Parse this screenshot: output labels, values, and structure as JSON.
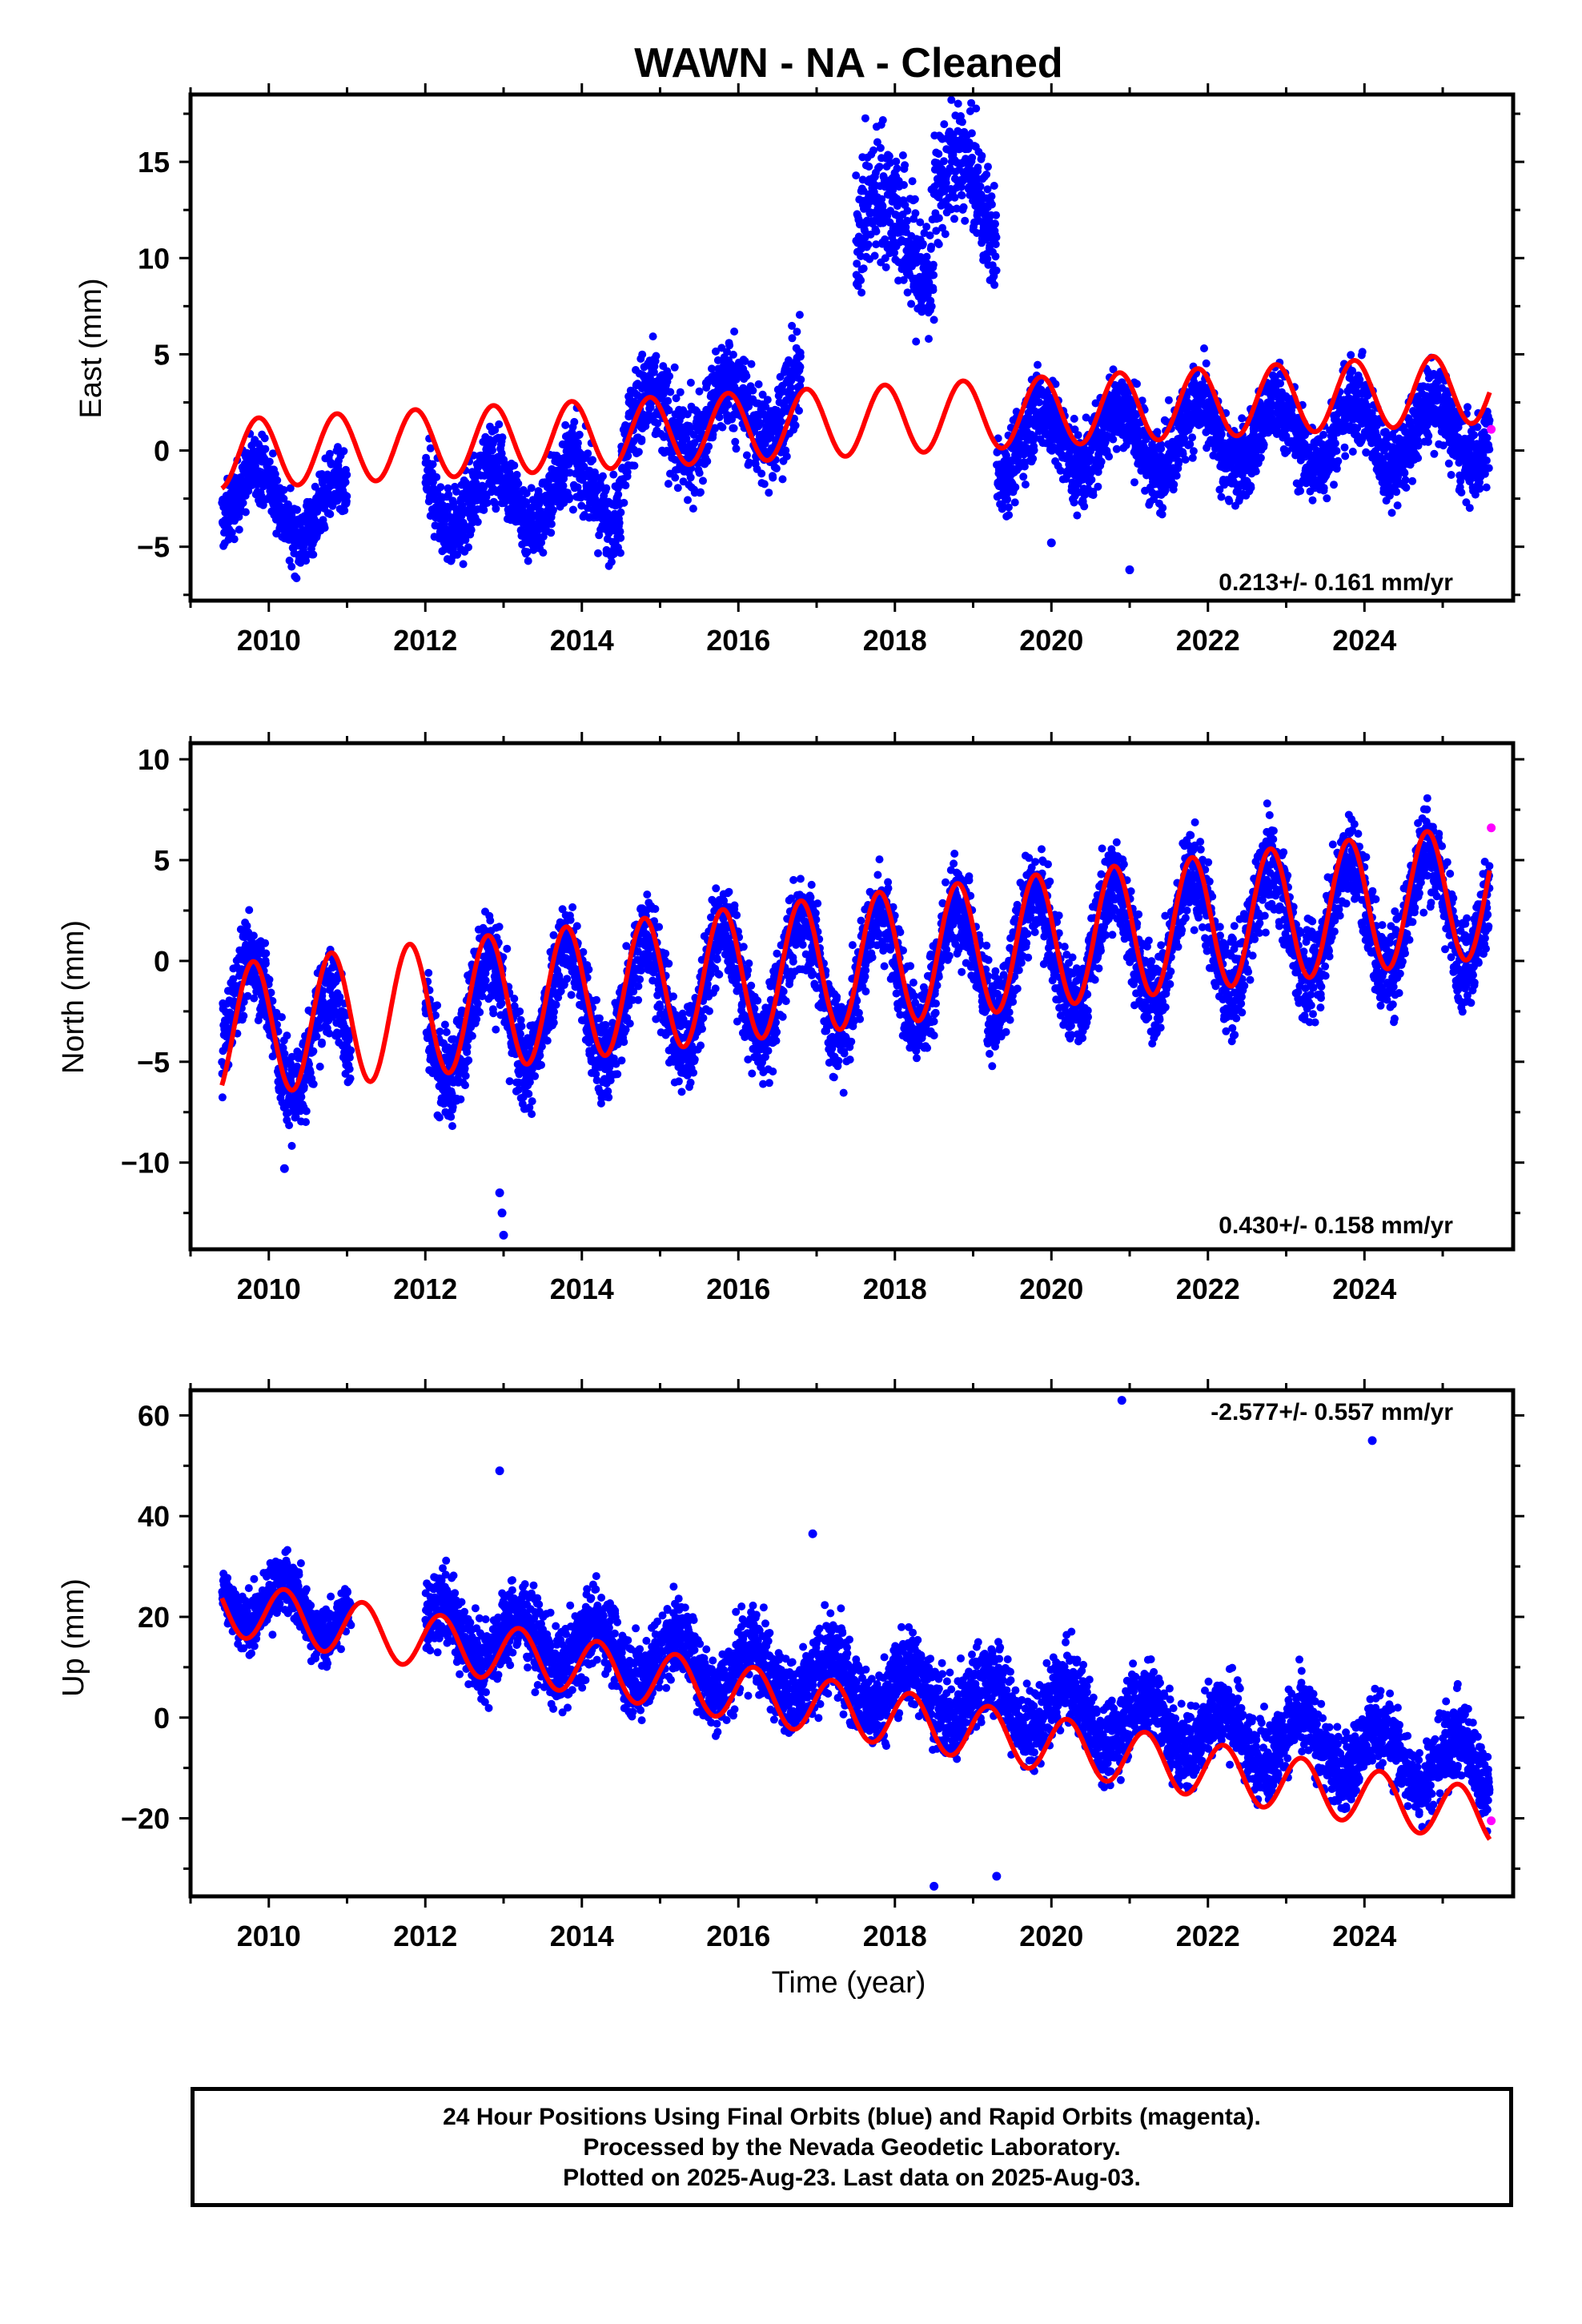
{
  "title": "WAWN  - NA - Cleaned",
  "xlabel": "Time (year)",
  "caption": [
    "24 Hour Positions Using Final Orbits (blue) and Rapid Orbits (magenta).",
    "Processed by the Nevada Geodetic Laboratory.",
    "Plotted on 2025-Aug-23. Last data on 2025-Aug-03."
  ],
  "colors": {
    "final": "#0000ff",
    "rapid": "#ff00ff",
    "model": "#ff0000"
  },
  "chart_data": [
    {
      "type": "scatter",
      "component": "east",
      "ylabel": "East (mm)",
      "rate": "0.213+/- 0.161 mm/yr",
      "xlim": [
        2009.0,
        2025.9
      ],
      "ylim": [
        -7.8,
        18.5
      ],
      "xticks": [
        2010,
        2012,
        2014,
        2016,
        2018,
        2020,
        2022,
        2024
      ],
      "yticks": [
        -5,
        0,
        5,
        10,
        15
      ],
      "data_span": [
        2009.4,
        2025.6
      ],
      "gaps": [
        [
          2011.05,
          2012.0
        ]
      ],
      "trend": {
        "intercept": -0.2,
        "slope": 0.213,
        "t0": 2009.4
      },
      "seasonal": {
        "amp": 1.8,
        "phase_year": 0.62
      },
      "series": [
        {
          "name": "Final Orbits",
          "color": "#0000ff",
          "segments": [
            {
              "x": [
                2009.4,
                2010.0,
                2011.0
              ],
              "y_start": -2.0,
              "y_end": -3.5,
              "scatter": 1.2
            },
            {
              "x": [
                2012.0,
                2013.0,
                2014.5
              ],
              "y_start": -2.5,
              "y_end": -2.0,
              "scatter": 1.4
            },
            {
              "x": [
                2014.5,
                2015.6,
                2016.8
              ],
              "y_start": 1.0,
              "y_end": 2.5,
              "scatter": 1.8
            },
            {
              "x": [
                2017.5,
                2018.0,
                2018.5
              ],
              "y_start": 12.5,
              "y_end": 10.5,
              "scatter": 2.5
            },
            {
              "x": [
                2018.5,
                2018.7,
                2019.3
              ],
              "y_start": 14.5,
              "y_end": 12.0,
              "scatter": 2.0
            },
            {
              "x": [
                2019.3,
                2022.0,
                2025.6
              ],
              "y_start": 0.5,
              "y_end": 1.0,
              "scatter": 1.5
            }
          ]
        },
        {
          "name": "Rapid Orbits",
          "color": "#ff00ff",
          "points": [
            [
              2025.62,
              1.1
            ]
          ]
        }
      ],
      "outliers": [
        [
          2020.0,
          -4.8
        ],
        [
          2021.0,
          -6.2
        ]
      ]
    },
    {
      "type": "scatter",
      "component": "north",
      "ylabel": "North (mm)",
      "rate": "0.430+/- 0.158 mm/yr",
      "xlim": [
        2009.0,
        2025.9
      ],
      "ylim": [
        -14.3,
        10.8
      ],
      "xticks": [
        2010,
        2012,
        2014,
        2016,
        2018,
        2020,
        2022,
        2024
      ],
      "yticks": [
        -10,
        -5,
        0,
        5,
        10
      ],
      "data_span": [
        2009.4,
        2025.6
      ],
      "gaps": [
        [
          2011.05,
          2012.0
        ]
      ],
      "trend": {
        "intercept": -3.5,
        "slope": 0.43,
        "t0": 2009.4
      },
      "seasonal": {
        "amp": 3.3,
        "phase_year": 0.55
      },
      "series": [
        {
          "name": "Final Orbits",
          "color": "#0000ff",
          "segments": [
            {
              "x": [
                2009.4,
                2010.2,
                2011.05
              ],
              "y_start": -2.0,
              "y_end": -5.0,
              "scatter": 1.6
            },
            {
              "x": [
                2012.0,
                2018.0,
                2025.6
              ],
              "y_start": -3.0,
              "y_end": 3.0,
              "scatter": 1.6
            }
          ]
        },
        {
          "name": "Rapid Orbits",
          "color": "#ff00ff",
          "points": [
            [
              2025.62,
              6.6
            ]
          ]
        }
      ],
      "outliers": [
        [
          2012.95,
          -11.5
        ],
        [
          2012.98,
          -12.5
        ],
        [
          2013.0,
          -13.6
        ],
        [
          2010.2,
          -10.3
        ]
      ]
    },
    {
      "type": "scatter",
      "component": "up",
      "ylabel": "Up (mm)",
      "rate": "-2.577+/- 0.557 mm/yr",
      "xlim": [
        2009.0,
        2025.9
      ],
      "ylim": [
        -35.5,
        65.0
      ],
      "xticks": [
        2010,
        2012,
        2014,
        2016,
        2018,
        2020,
        2022,
        2024
      ],
      "yticks": [
        -20,
        0,
        20,
        40,
        60
      ],
      "data_span": [
        2009.4,
        2025.6
      ],
      "gaps": [
        [
          2011.05,
          2012.0
        ]
      ],
      "trend": {
        "intercept": 22.0,
        "slope": -2.577,
        "t0": 2009.4
      },
      "seasonal": {
        "amp": 5.5,
        "phase_year": 0.95
      },
      "series": [
        {
          "name": "Final Orbits",
          "color": "#0000ff",
          "segments": [
            {
              "x": [
                2009.4,
                2010.2,
                2011.05
              ],
              "y_start": 24.0,
              "y_end": 20.0,
              "scatter": 4.0
            },
            {
              "x": [
                2012.0,
                2018.0,
                2025.6
              ],
              "y_start": 18.0,
              "y_end": -10.0,
              "scatter": 5.5
            }
          ]
        },
        {
          "name": "Rapid Orbits",
          "color": "#ff00ff",
          "points": [
            [
              2025.62,
              -20.5
            ]
          ]
        }
      ],
      "outliers": [
        [
          2020.9,
          63.0
        ],
        [
          2024.1,
          55.0
        ],
        [
          2012.95,
          49.0
        ],
        [
          2016.95,
          36.5
        ],
        [
          2018.5,
          -33.5
        ],
        [
          2019.3,
          -31.5
        ]
      ]
    }
  ]
}
